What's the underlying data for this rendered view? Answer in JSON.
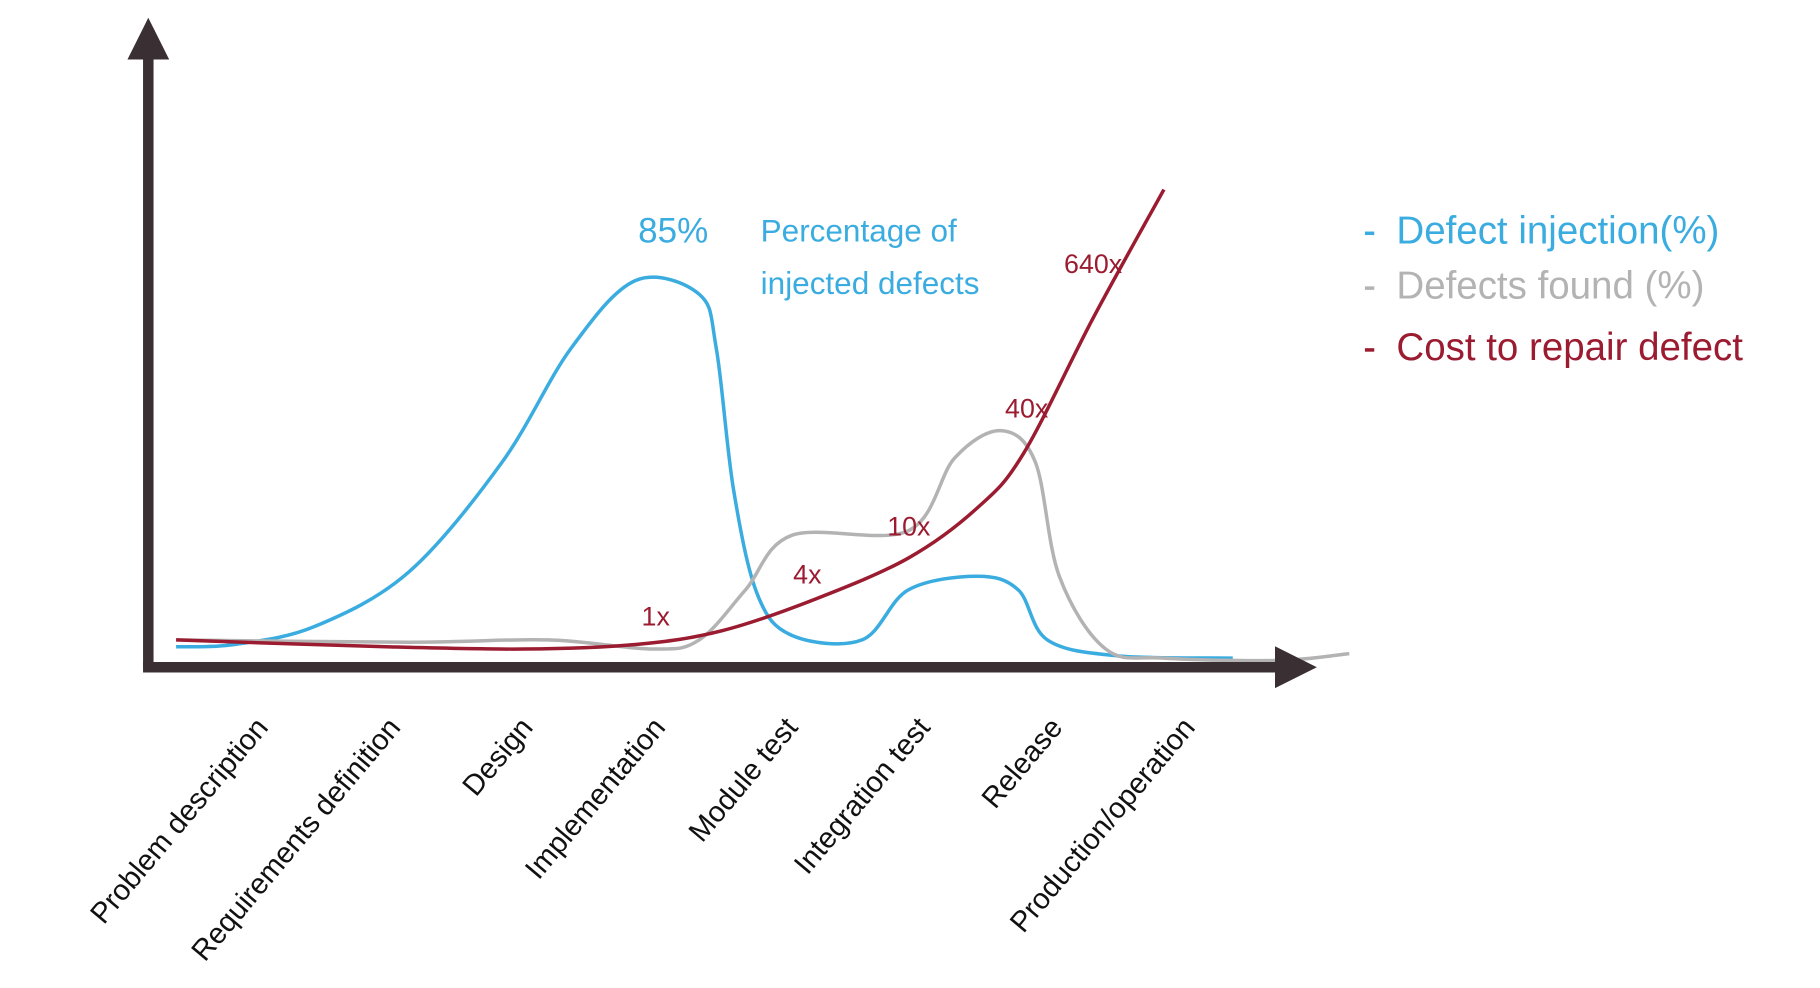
{
  "chart_data": {
    "type": "line",
    "categories": [
      "Problem description",
      "Requirements definition",
      "Design",
      "Implementation",
      "Module test",
      "Integration test",
      "Release",
      "Production/operation"
    ],
    "xlim": [
      -0.65,
      8.45
    ],
    "ylim": [
      0,
      140
    ],
    "series": [
      {
        "name": "Defect injection(%)",
        "color": "#3aace0",
        "x": [
          -0.44,
          0,
          0.61,
          1.32,
          2.02,
          2.54,
          3.03,
          3.51,
          3.64,
          3.77,
          3.95,
          4.21,
          4.74,
          5.09,
          5.61,
          5.92,
          6.14,
          6.67,
          7.54
        ],
        "values": [
          4.5,
          5,
          9,
          21,
          45,
          70,
          85,
          82,
          70,
          39,
          16,
          7,
          6,
          17,
          20,
          17,
          6,
          2.5,
          2
        ]
      },
      {
        "name": "Defects found (%)",
        "color": "#b3b3b3",
        "x": [
          -0.44,
          1.32,
          2.37,
          3.16,
          3.51,
          3.86,
          4.21,
          5.09,
          5.44,
          5.79,
          6.05,
          6.23,
          6.58,
          7.02,
          7.89,
          8.42
        ],
        "values": [
          6,
          5.5,
          6,
          4,
          6,
          17,
          29,
          30,
          46,
          52,
          45,
          20,
          4,
          2,
          1.5,
          3
        ]
      },
      {
        "name": "Cost to repair defect",
        "color": "#9b1b30",
        "x": [
          -0.44,
          1.14,
          2.19,
          3.03,
          3.68,
          4.39,
          5.09,
          5.61,
          5.96,
          6.49,
          7.02
        ],
        "values": [
          6,
          4.5,
          4,
          5,
          8,
          15,
          24,
          35,
          47,
          77,
          105
        ]
      }
    ],
    "annotations": [
      "85%",
      "Percentage of",
      "injected defects",
      "640x",
      "40x",
      "10x",
      "4x",
      "1x"
    ],
    "legend": "right"
  }
}
